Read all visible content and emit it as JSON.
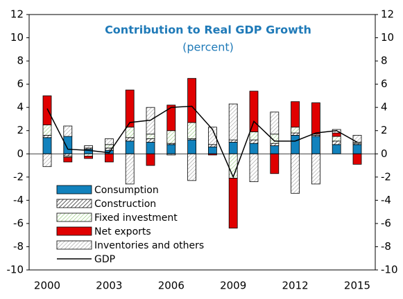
{
  "chart_data": {
    "type": "bar",
    "title": "Contribution to Real GDP Growth",
    "subtitle": "(percent)",
    "categories": [
      "2000",
      null,
      null,
      "2003",
      null,
      null,
      "2006",
      null,
      null,
      "2009",
      null,
      null,
      "2012",
      null,
      null,
      "2015"
    ],
    "series": [
      {
        "name": "Consumption",
        "color": "#1282bd",
        "values": [
          1.4,
          1.5,
          0.4,
          0.3,
          1.1,
          1.0,
          0.8,
          1.2,
          0.6,
          1.0,
          0.9,
          0.7,
          1.6,
          1.5,
          0.8,
          0.8
        ]
      },
      {
        "name": "Construction",
        "color": "#000000",
        "pattern": "hatch",
        "values": [
          0.2,
          -0.2,
          0.1,
          0.2,
          0.3,
          0.3,
          0.1,
          0.1,
          0.2,
          0.2,
          0.3,
          0.2,
          0.2,
          0.1,
          0.3,
          0.1
        ]
      },
      {
        "name": "Fixed investment",
        "color": "#8cc870",
        "pattern": "hatch",
        "values": [
          0.9,
          -0.1,
          -0.2,
          0.3,
          0.9,
          0.4,
          1.1,
          1.4,
          0.0,
          -2.1,
          0.7,
          0.8,
          0.5,
          0.1,
          0.4,
          0.1
        ]
      },
      {
        "name": "Net exports",
        "color": "#e00000",
        "values": [
          2.5,
          -0.4,
          -0.2,
          -0.7,
          3.2,
          -1.0,
          2.2,
          3.8,
          -0.1,
          -4.3,
          3.5,
          -1.7,
          2.2,
          2.7,
          0.3,
          -0.9
        ]
      },
      {
        "name": "Inventories and others",
        "color": "#9a9a9a",
        "pattern": "hatch",
        "values": [
          -1.1,
          0.9,
          0.2,
          0.5,
          -2.6,
          2.3,
          -0.1,
          -2.3,
          1.5,
          3.1,
          -2.4,
          1.9,
          -3.4,
          -2.6,
          0.3,
          0.6
        ]
      },
      {
        "name": "GDP",
        "type": "line",
        "color": "#000000",
        "values": [
          3.9,
          0.4,
          0.3,
          0.1,
          2.7,
          2.9,
          4.0,
          4.1,
          2.1,
          -2.0,
          2.8,
          1.1,
          1.1,
          1.8,
          2.0,
          1.0
        ]
      }
    ],
    "ylim": [
      -10,
      12
    ],
    "yticks": [
      -10,
      -8,
      -6,
      -4,
      -2,
      0,
      2,
      4,
      6,
      8,
      10,
      12
    ],
    "y2lim": [
      -10,
      12
    ],
    "y2ticks": [
      -10,
      -8,
      -6,
      -4,
      -2,
      0,
      2,
      4,
      6,
      8,
      10,
      12
    ],
    "title_color": "#1f7ab8",
    "grid": false
  }
}
